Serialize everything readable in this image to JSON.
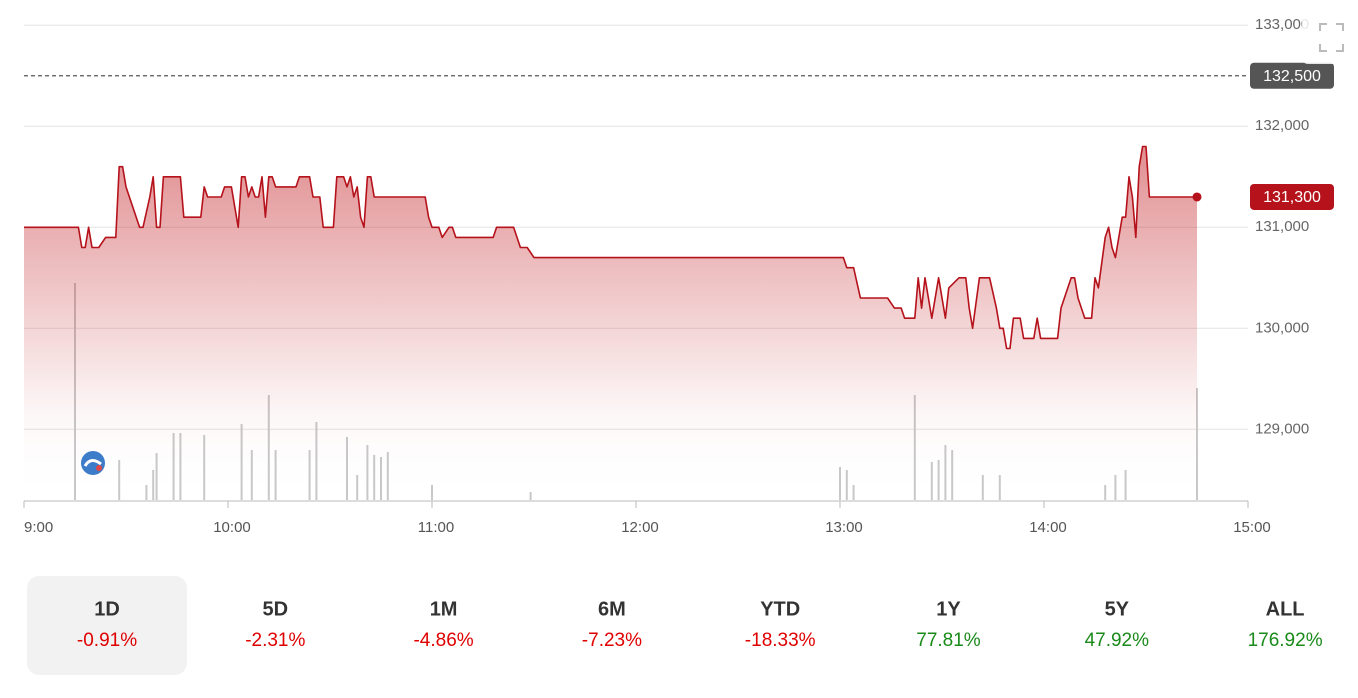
{
  "chart_data": {
    "type": "line",
    "color": "#b5121b",
    "x": [
      "9:00",
      "9:16",
      "9:17",
      "9:18",
      "9:19",
      "9:20",
      "9:22",
      "9:24",
      "9:27",
      "9:28",
      "9:29",
      "9:30",
      "9:34",
      "9:35",
      "9:37",
      "9:38",
      "9:39",
      "9:40",
      "9:41",
      "9:46",
      "9:47",
      "9:52",
      "9:53",
      "9:54",
      "9:58",
      "9:59",
      "10:01",
      "10:03",
      "10:04",
      "10:05",
      "10:06",
      "10:07",
      "10:08",
      "10:09",
      "10:10",
      "10:11",
      "10:12",
      "10:13",
      "10:14",
      "10:20",
      "10:21",
      "10:24",
      "10:25",
      "10:27",
      "10:28",
      "10:31",
      "10:32",
      "10:34",
      "10:35",
      "10:36",
      "10:37",
      "10:38",
      "10:39",
      "10:40",
      "10:41",
      "10:42",
      "10:43",
      "10:58",
      "10:59",
      "11:00",
      "11:02",
      "11:03",
      "11:05",
      "11:06",
      "11:07",
      "11:18",
      "11:19",
      "11:24",
      "11:26",
      "11:28",
      "11:30",
      "13:01",
      "13:02",
      "13:04",
      "13:06",
      "13:14",
      "13:16",
      "13:18",
      "13:19",
      "13:22",
      "13:23",
      "13:24",
      "13:25",
      "13:27",
      "13:29",
      "13:31",
      "13:32",
      "13:35",
      "13:37",
      "13:38",
      "13:39",
      "13:41",
      "13:44",
      "13:46",
      "13:47",
      "13:48",
      "13:49",
      "13:50",
      "13:51",
      "13:53",
      "13:54",
      "13:57",
      "13:58",
      "13:59",
      "14:04",
      "14:05",
      "14:08",
      "14:09",
      "14:10",
      "14:12",
      "14:14",
      "14:15",
      "14:16",
      "14:18",
      "14:19",
      "14:20",
      "14:21",
      "14:23",
      "14:24",
      "14:25",
      "14:26",
      "14:27",
      "14:28",
      "14:29",
      "14:30",
      "14:31",
      "14:45"
    ],
    "values": [
      131000,
      131000,
      130800,
      130800,
      131000,
      130800,
      130800,
      130900,
      130900,
      131600,
      131600,
      131400,
      131000,
      131000,
      131300,
      131500,
      131000,
      131000,
      131500,
      131500,
      131100,
      131100,
      131400,
      131300,
      131300,
      131400,
      131400,
      131000,
      131500,
      131500,
      131300,
      131400,
      131300,
      131300,
      131500,
      131100,
      131500,
      131500,
      131400,
      131400,
      131500,
      131500,
      131300,
      131300,
      131000,
      131000,
      131500,
      131500,
      131400,
      131500,
      131300,
      131400,
      131100,
      131000,
      131500,
      131500,
      131300,
      131300,
      131100,
      131000,
      131000,
      130900,
      131000,
      131000,
      130900,
      130900,
      131000,
      131000,
      130800,
      130800,
      130700,
      130700,
      130600,
      130600,
      130300,
      130300,
      130200,
      130200,
      130100,
      130100,
      130500,
      130200,
      130500,
      130100,
      130500,
      130100,
      130400,
      130500,
      130500,
      130200,
      130000,
      130500,
      130500,
      130200,
      130000,
      130000,
      129800,
      129800,
      130100,
      130100,
      129900,
      129900,
      130100,
      129900,
      129900,
      130200,
      130500,
      130500,
      130300,
      130100,
      130100,
      130500,
      130400,
      130900,
      131000,
      130800,
      130700,
      131100,
      131100,
      131500,
      131300,
      130900,
      131600,
      131800,
      131800,
      131300,
      131300
    ],
    "volume": {
      "color": "#c8c8c8",
      "x": [
        "9:15",
        "9:28",
        "9:36",
        "9:38",
        "9:39",
        "9:44",
        "9:46",
        "9:53",
        "10:04",
        "10:07",
        "10:12",
        "10:14",
        "10:24",
        "10:26",
        "10:35",
        "10:38",
        "10:41",
        "10:43",
        "10:45",
        "10:47",
        "11:00",
        "11:29",
        "13:00",
        "13:02",
        "13:04",
        "13:22",
        "13:27",
        "13:29",
        "13:31",
        "13:33",
        "13:42",
        "13:47",
        "14:18",
        "14:21",
        "14:24",
        "14:45"
      ],
      "values": [
        217,
        40,
        15,
        30,
        47,
        67,
        67,
        65,
        76,
        50,
        105,
        50,
        50,
        78,
        63,
        25,
        55,
        45,
        43,
        48,
        15,
        8,
        33,
        30,
        15,
        105,
        38,
        40,
        55,
        50,
        25,
        25,
        15,
        25,
        30,
        112
      ]
    },
    "xlim": [
      "9:00",
      "15:00"
    ],
    "xticks": [
      "9:00",
      "10:00",
      "11:00",
      "12:00",
      "13:00",
      "14:00",
      "15:00"
    ],
    "ylim": [
      128300,
      133250
    ],
    "yticks": [
      {
        "value": 129000,
        "label": "129,000"
      },
      {
        "value": 130000,
        "label": "130,000"
      },
      {
        "value": 131000,
        "label": "131,000"
      },
      {
        "value": 132000,
        "label": "132,000"
      },
      {
        "value": 133000,
        "label": "133,000"
      }
    ],
    "grid": true,
    "reference_line": {
      "value": 132500,
      "label": "132,500"
    },
    "last_price": {
      "value": 131300,
      "label": "131,300"
    }
  },
  "periods": {
    "selected": "1D",
    "items": [
      {
        "label": "1D",
        "change": "-0.91%"
      },
      {
        "label": "5D",
        "change": "-2.31%"
      },
      {
        "label": "1M",
        "change": "-4.86%"
      },
      {
        "label": "6M",
        "change": "-7.23%"
      },
      {
        "label": "YTD",
        "change": "-18.33%"
      },
      {
        "label": "1Y",
        "change": "77.81%"
      },
      {
        "label": "5Y",
        "change": "47.92%"
      },
      {
        "label": "ALL",
        "change": "176.92%"
      }
    ]
  }
}
